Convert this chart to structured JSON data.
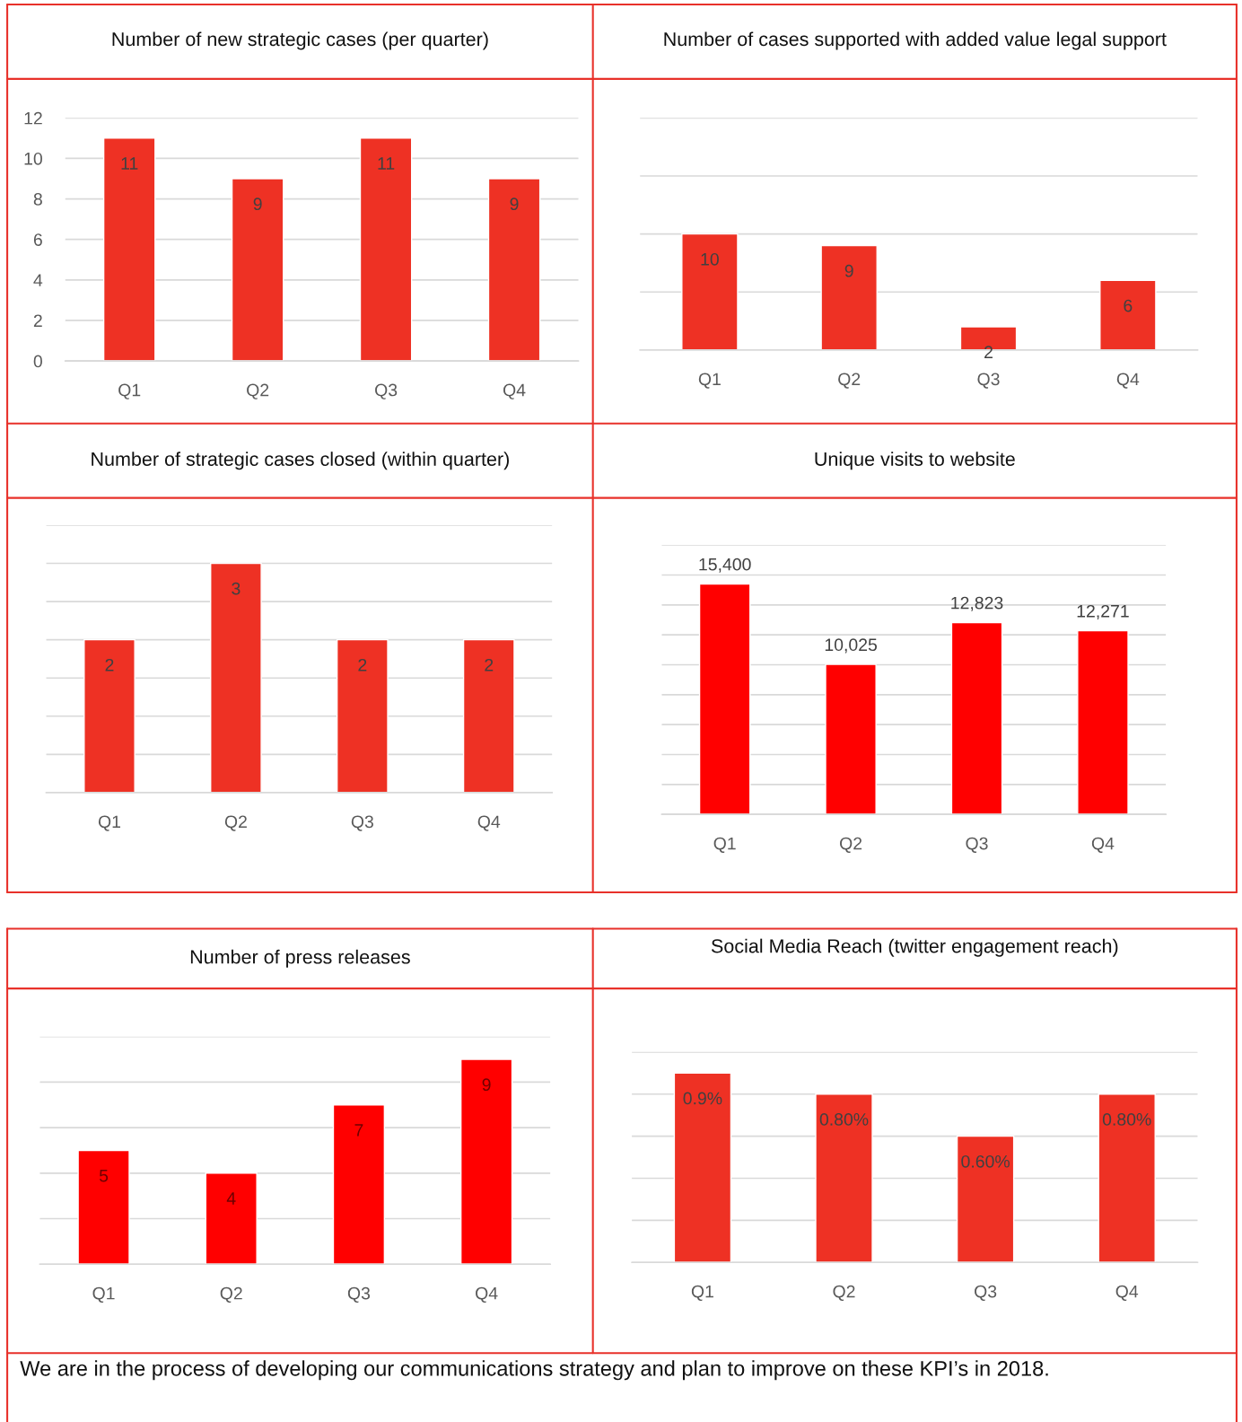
{
  "chart_data": [
    {
      "type": "bar",
      "title": "Number of new strategic cases (per quarter)",
      "categories": [
        "Q1",
        "Q2",
        "Q3",
        "Q4"
      ],
      "values": [
        11,
        9,
        11,
        9
      ],
      "color": "#ee3124",
      "ylim": [
        0,
        12
      ],
      "yticks": [
        0,
        2,
        4,
        6,
        8,
        10,
        12
      ],
      "grid": "y",
      "data_labels": true
    },
    {
      "type": "bar",
      "title": "Number of cases supported with added value legal support",
      "categories": [
        "Q1",
        "Q2",
        "Q3",
        "Q4"
      ],
      "values": [
        10,
        9,
        2,
        6
      ],
      "color": "#ee3124",
      "ylim": [
        0,
        20
      ],
      "yticks": [
        {
          "value": 0,
          "label": null
        },
        {
          "value": 5,
          "label": null
        },
        {
          "value": 10,
          "label": null
        },
        {
          "value": 15,
          "label": null
        },
        {
          "value": 20,
          "label": null
        }
      ],
      "tick_labels": "x",
      "grid": "y",
      "data_labels": true
    },
    {
      "type": "bar",
      "title": "Number of strategic cases closed (within quarter)",
      "categories": [
        "Q1",
        "Q2",
        "Q3",
        "Q4"
      ],
      "values": [
        2,
        3,
        2,
        2
      ],
      "color": "#ee3124",
      "ylim": [
        0,
        3.5
      ],
      "yticks": [
        {
          "value": 0,
          "label": null
        },
        {
          "value": 0.5,
          "label": null
        },
        {
          "value": 1,
          "label": null
        },
        {
          "value": 1.5,
          "label": null
        },
        {
          "value": 2,
          "label": null
        },
        {
          "value": 2.5,
          "label": null
        },
        {
          "value": 3,
          "label": null
        },
        {
          "value": 3.5,
          "label": null
        }
      ],
      "tick_labels": "x",
      "grid": "y",
      "data_labels": true
    },
    {
      "type": "bar",
      "title": "Unique visits to website",
      "categories": [
        "Q1",
        "Q2",
        "Q3",
        "Q4"
      ],
      "values": [
        15400,
        10025,
        12823,
        12271
      ],
      "value_labels": [
        "15,400",
        "10,025",
        "12,823",
        "12,271"
      ],
      "color": "#ff0000",
      "ylim": [
        0,
        18000
      ],
      "yticks": [
        {
          "value": 0,
          "label": null
        },
        {
          "value": 2000,
          "label": null
        },
        {
          "value": 4000,
          "label": null
        },
        {
          "value": 6000,
          "label": null
        },
        {
          "value": 8000,
          "label": null
        },
        {
          "value": 10000,
          "label": null
        },
        {
          "value": 12000,
          "label": null
        },
        {
          "value": 14000,
          "label": null
        },
        {
          "value": 16000,
          "label": null
        },
        {
          "value": 18000,
          "label": null
        }
      ],
      "tick_labels": "x",
      "grid": "y"
    },
    {
      "type": "bar",
      "title": "Number of press releases",
      "categories": [
        "Q1",
        "Q2",
        "Q3",
        "Q4"
      ],
      "values": [
        5,
        4,
        7,
        9
      ],
      "color": "#ff0000",
      "ylim": [
        0,
        10
      ],
      "yticks": [
        {
          "value": 0,
          "label": null
        },
        {
          "value": 2,
          "label": null
        },
        {
          "value": 4,
          "label": null
        },
        {
          "value": 6,
          "label": null
        },
        {
          "value": 8,
          "label": null
        },
        {
          "value": 10,
          "label": null
        }
      ],
      "tick_labels": "x",
      "grid": "y",
      "data_labels": true
    },
    {
      "type": "bar",
      "title": "Social Media Reach (twitter engagement reach)",
      "categories": [
        "Q1",
        "Q2",
        "Q3",
        "Q4"
      ],
      "values": [
        0.9,
        0.8,
        0.6,
        0.8
      ],
      "value_labels": [
        "0.9%",
        "0.80%",
        "0.60%",
        "0.80%"
      ],
      "color": "#ee3124",
      "ylim": [
        0,
        1
      ],
      "yticks": [
        {
          "value": 0,
          "label": null
        },
        {
          "value": 0.2,
          "label": null
        },
        {
          "value": 0.4,
          "label": null
        },
        {
          "value": 0.6,
          "label": null
        },
        {
          "value": 0.8,
          "label": null
        },
        {
          "value": 1,
          "label": null
        }
      ],
      "tick_labels": "x",
      "grid": "y",
      "annotations": [
        "We are in the process of developing our communications strategy and plan to improve on these KPI’s in 2018."
      ]
    }
  ]
}
